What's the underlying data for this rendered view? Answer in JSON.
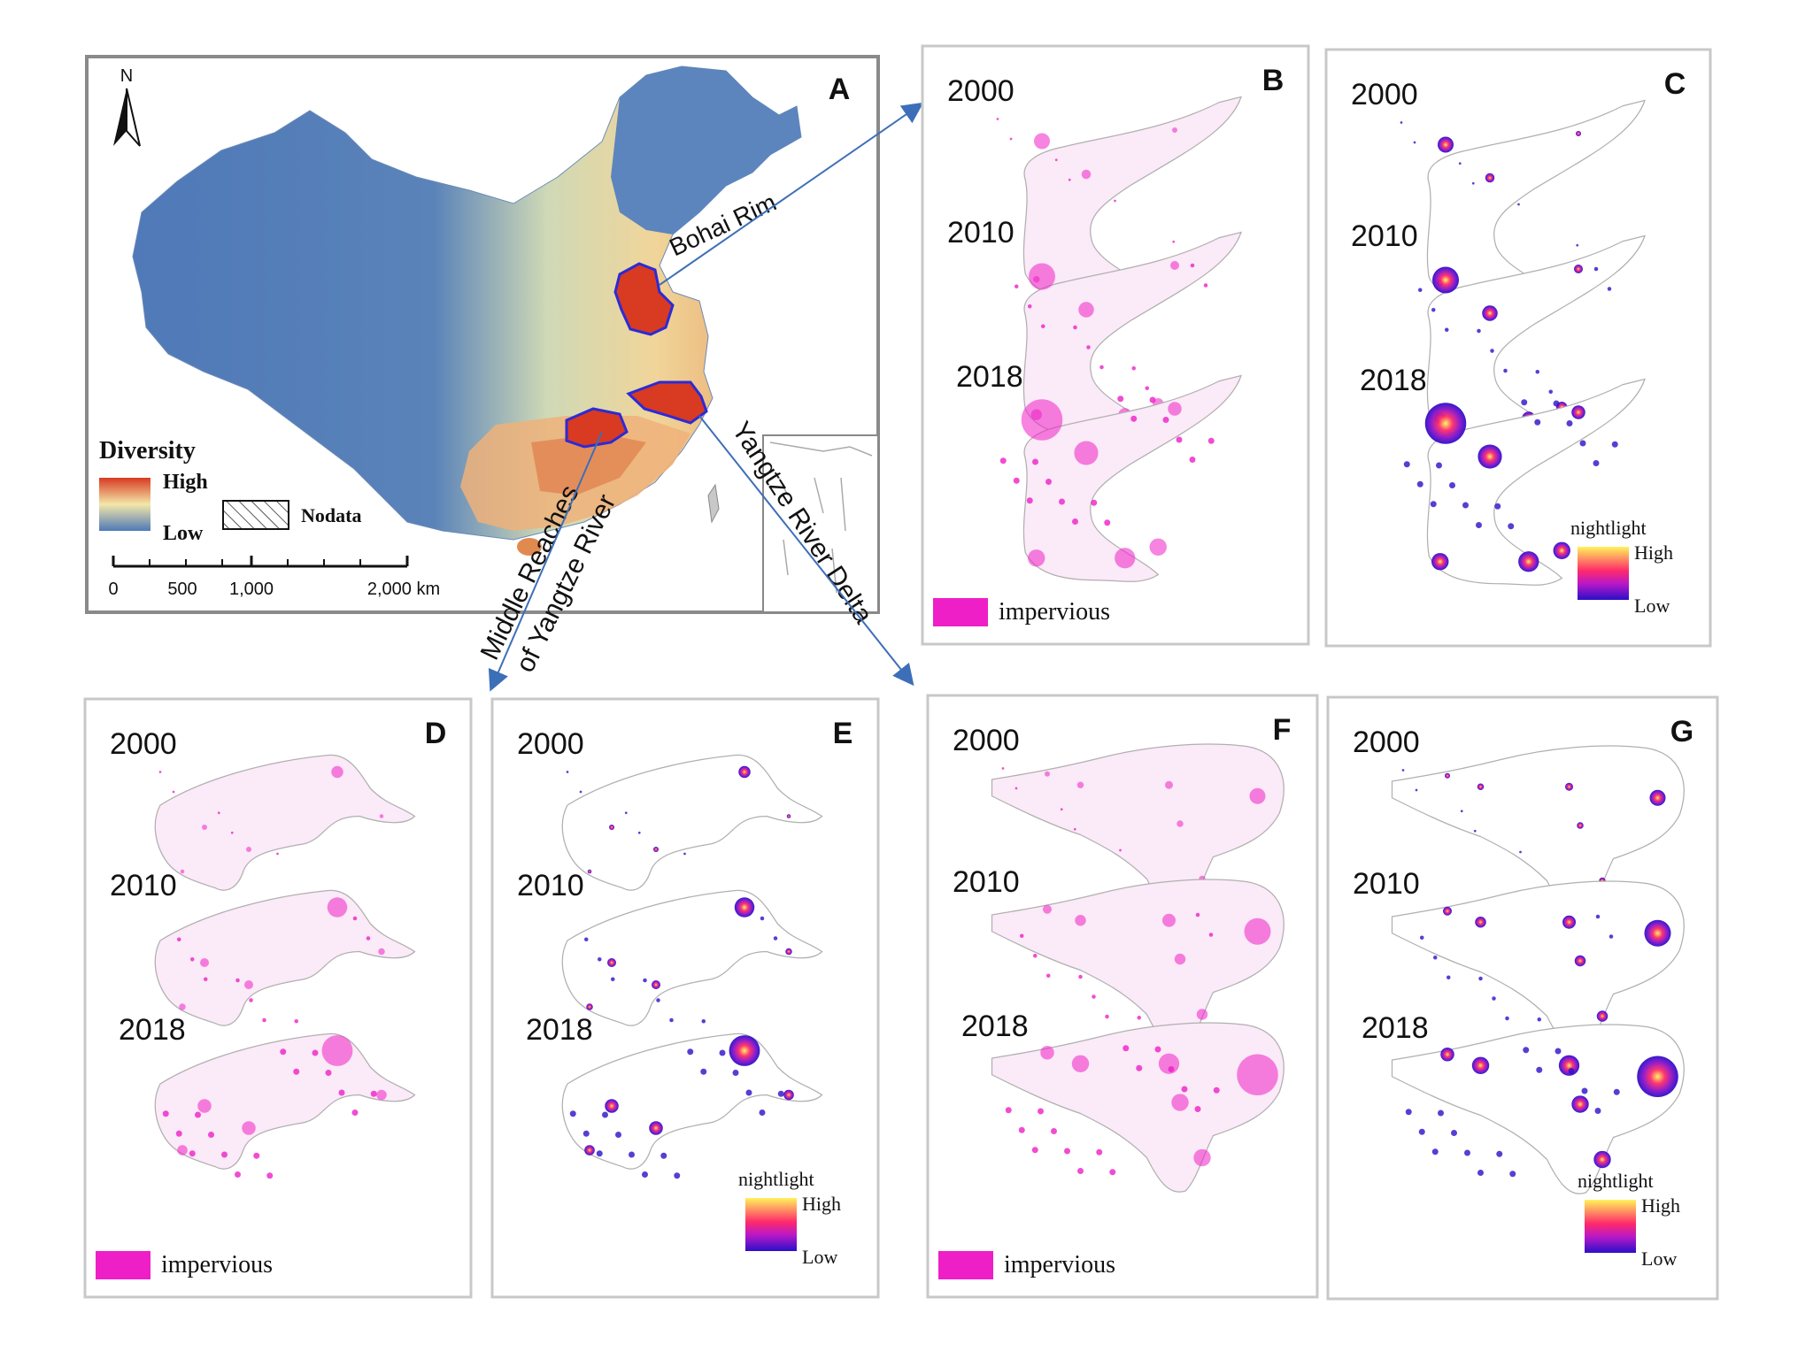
{
  "panel_a": {
    "letter": "A",
    "north": "N",
    "legend_title": "Diversity",
    "legend_high": "High",
    "legend_low": "Low",
    "nodata": "Nodata",
    "scale_ticks": [
      "0",
      "500",
      "1,000",
      "2,000 km"
    ],
    "region_labels": {
      "bohai": "Bohai Rim",
      "middle_line1": "Middle Reaches",
      "middle_line2": "of Yangtze River",
      "yrd": "Yangtze River Delta"
    }
  },
  "years": [
    "2000",
    "2010",
    "2018"
  ],
  "panels": [
    {
      "letter": "B",
      "kind": "impervious",
      "legend": "impervious"
    },
    {
      "letter": "C",
      "kind": "nightlight",
      "legend_title": "nightlight",
      "legend_high": "High",
      "legend_low": "Low"
    },
    {
      "letter": "D",
      "kind": "impervious",
      "legend": "impervious"
    },
    {
      "letter": "E",
      "kind": "nightlight",
      "legend_title": "nightlight",
      "legend_high": "High",
      "legend_low": "Low"
    },
    {
      "letter": "F",
      "kind": "impervious",
      "legend": "impervious"
    },
    {
      "letter": "G",
      "kind": "nightlight",
      "legend_title": "nightlight",
      "legend_high": "High",
      "legend_low": "Low"
    }
  ],
  "colors": {
    "impervious": "#ee1fc6",
    "nightlight_high": "#fff35a",
    "nightlight_mid": "#ff2a6a",
    "nightlight_low": "#2a0fc8",
    "diversity_high": "#d83a22",
    "diversity_mid": "#f3e7a8",
    "diversity_low": "#4f79b8",
    "region_outline": "#2b2bd6",
    "arrow": "#3d6fb8"
  }
}
